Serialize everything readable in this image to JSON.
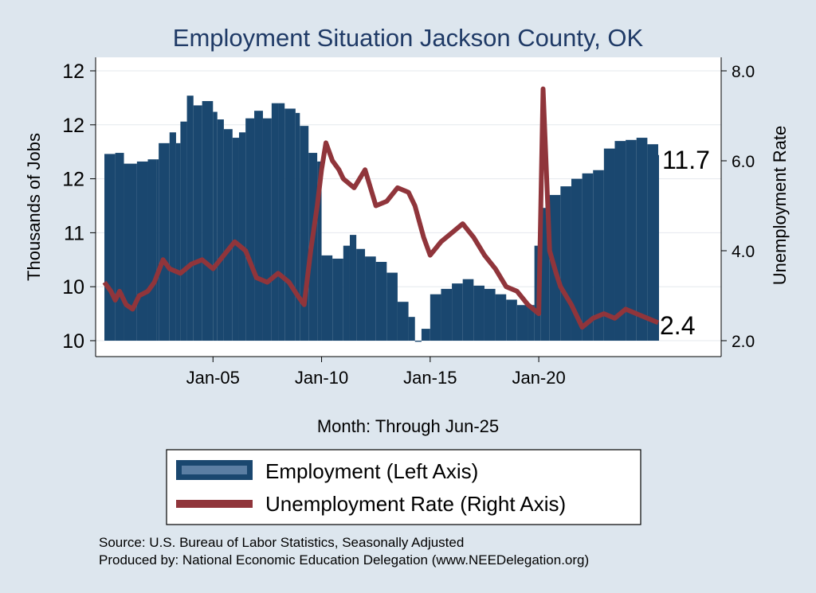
{
  "chart_data": {
    "type": "bar+line",
    "title": "Employment Situation Jackson  County, OK",
    "xlabel": "Month: Through Jun-25",
    "ylabel_left": "Thousands of Jobs",
    "ylabel_right": "Unemployment Rate",
    "x_ticks": [
      "Jan-05",
      "Jan-10",
      "Jan-15",
      "Jan-20"
    ],
    "x_tick_years": [
      2005,
      2010,
      2015,
      2020
    ],
    "x_range": [
      2000.0,
      2025.5
    ],
    "y_left_ticks": [
      "12",
      "12",
      "12",
      "11",
      "10",
      "10"
    ],
    "y_left_tick_values": [
      12.5,
      12.0,
      11.5,
      11.0,
      10.5,
      10.0
    ],
    "y_left_range": [
      10.0,
      12.5
    ],
    "y_right_ticks": [
      "8.0",
      "6.0",
      "4.0",
      "2.0"
    ],
    "y_right_tick_values": [
      8.0,
      6.0,
      4.0,
      2.0
    ],
    "y_right_range": [
      2.0,
      8.0
    ],
    "grid": true,
    "legend_position": "bottom",
    "series": [
      {
        "name": "Employment (Left Axis)",
        "axis": "left",
        "kind": "bar",
        "color": "#1a476f",
        "last_value_label": "11.7",
        "points": [
          [
            2000.0,
            11.73
          ],
          [
            2000.5,
            11.74
          ],
          [
            2000.9,
            11.64
          ],
          [
            2001.5,
            11.66
          ],
          [
            2002.0,
            11.68
          ],
          [
            2002.4,
            11.68
          ],
          [
            2002.5,
            11.83
          ],
          [
            2003.0,
            11.93
          ],
          [
            2003.3,
            11.83
          ],
          [
            2003.5,
            12.03
          ],
          [
            2003.8,
            12.27
          ],
          [
            2004.1,
            12.18
          ],
          [
            2004.5,
            12.22
          ],
          [
            2005.0,
            12.12
          ],
          [
            2005.2,
            12.05
          ],
          [
            2005.5,
            11.96
          ],
          [
            2005.9,
            11.88
          ],
          [
            2006.2,
            11.93
          ],
          [
            2006.5,
            12.06
          ],
          [
            2006.9,
            12.13
          ],
          [
            2007.3,
            12.06
          ],
          [
            2007.7,
            12.2
          ],
          [
            2008.0,
            12.2
          ],
          [
            2008.3,
            12.15
          ],
          [
            2008.8,
            12.11
          ],
          [
            2009.0,
            11.99
          ],
          [
            2009.4,
            11.74
          ],
          [
            2009.8,
            11.66
          ],
          [
            2010.0,
            10.79
          ],
          [
            2010.5,
            10.76
          ],
          [
            2011.0,
            10.88
          ],
          [
            2011.3,
            10.98
          ],
          [
            2011.6,
            10.85
          ],
          [
            2012.0,
            10.78
          ],
          [
            2012.5,
            10.73
          ],
          [
            2013.0,
            10.63
          ],
          [
            2013.5,
            10.36
          ],
          [
            2014.0,
            10.22
          ],
          [
            2014.3,
            9.99
          ],
          [
            2014.6,
            10.11
          ],
          [
            2015.0,
            10.43
          ],
          [
            2015.5,
            10.48
          ],
          [
            2016.0,
            10.53
          ],
          [
            2016.5,
            10.57
          ],
          [
            2017.0,
            10.51
          ],
          [
            2017.5,
            10.48
          ],
          [
            2018.0,
            10.43
          ],
          [
            2018.5,
            10.38
          ],
          [
            2019.0,
            10.33
          ],
          [
            2019.5,
            10.33
          ],
          [
            2019.8,
            10.88
          ],
          [
            2020.1,
            11.23
          ],
          [
            2020.5,
            11.35
          ],
          [
            2021.0,
            11.43
          ],
          [
            2021.5,
            11.5
          ],
          [
            2022.0,
            11.55
          ],
          [
            2022.5,
            11.58
          ],
          [
            2023.0,
            11.78
          ],
          [
            2023.5,
            11.85
          ],
          [
            2024.0,
            11.86
          ],
          [
            2024.5,
            11.88
          ],
          [
            2025.0,
            11.82
          ],
          [
            2025.5,
            11.72
          ]
        ]
      },
      {
        "name": "Unemployment Rate (Right Axis)",
        "axis": "right",
        "kind": "line",
        "color": "#90353b",
        "last_value_label": "2.4",
        "points": [
          [
            2000.0,
            3.3
          ],
          [
            2000.3,
            3.1
          ],
          [
            2000.5,
            2.9
          ],
          [
            2000.7,
            3.1
          ],
          [
            2001.0,
            2.8
          ],
          [
            2001.3,
            2.7
          ],
          [
            2001.6,
            3.0
          ],
          [
            2002.0,
            3.1
          ],
          [
            2002.3,
            3.3
          ],
          [
            2002.7,
            3.8
          ],
          [
            2003.0,
            3.6
          ],
          [
            2003.5,
            3.5
          ],
          [
            2004.0,
            3.7
          ],
          [
            2004.5,
            3.8
          ],
          [
            2005.0,
            3.6
          ],
          [
            2005.5,
            3.9
          ],
          [
            2006.0,
            4.2
          ],
          [
            2006.5,
            4.0
          ],
          [
            2007.0,
            3.4
          ],
          [
            2007.5,
            3.3
          ],
          [
            2008.0,
            3.5
          ],
          [
            2008.5,
            3.3
          ],
          [
            2008.9,
            3.0
          ],
          [
            2009.2,
            2.8
          ],
          [
            2009.5,
            4.0
          ],
          [
            2009.8,
            5.0
          ],
          [
            2010.0,
            5.8
          ],
          [
            2010.2,
            6.4
          ],
          [
            2010.5,
            6.0
          ],
          [
            2010.8,
            5.8
          ],
          [
            2011.0,
            5.6
          ],
          [
            2011.5,
            5.4
          ],
          [
            2012.0,
            5.8
          ],
          [
            2012.5,
            5.0
          ],
          [
            2013.0,
            5.1
          ],
          [
            2013.5,
            5.4
          ],
          [
            2014.0,
            5.3
          ],
          [
            2014.3,
            5.0
          ],
          [
            2014.7,
            4.3
          ],
          [
            2015.0,
            3.9
          ],
          [
            2015.5,
            4.2
          ],
          [
            2016.0,
            4.4
          ],
          [
            2016.5,
            4.6
          ],
          [
            2017.0,
            4.3
          ],
          [
            2017.5,
            3.9
          ],
          [
            2018.0,
            3.6
          ],
          [
            2018.5,
            3.2
          ],
          [
            2019.0,
            3.1
          ],
          [
            2019.5,
            2.8
          ],
          [
            2020.0,
            2.6
          ],
          [
            2020.2,
            7.6
          ],
          [
            2020.5,
            4.0
          ],
          [
            2020.8,
            3.5
          ],
          [
            2021.0,
            3.2
          ],
          [
            2021.5,
            2.8
          ],
          [
            2022.0,
            2.3
          ],
          [
            2022.5,
            2.5
          ],
          [
            2023.0,
            2.6
          ],
          [
            2023.5,
            2.5
          ],
          [
            2024.0,
            2.7
          ],
          [
            2024.5,
            2.6
          ],
          [
            2025.0,
            2.5
          ],
          [
            2025.5,
            2.4
          ]
        ]
      }
    ]
  },
  "notes": {
    "source": "Source: U.S. Bureau of Labor Statistics, Seasonally Adjusted",
    "produced_by": "Produced by: National Economic Education Delegation (www.NEEDelegation.org)"
  },
  "colors": {
    "background": "#dde6ee",
    "plot_background": "#ffffff",
    "employment": "#1a476f",
    "unemployment": "#90353b",
    "title": "#1f3a66"
  }
}
